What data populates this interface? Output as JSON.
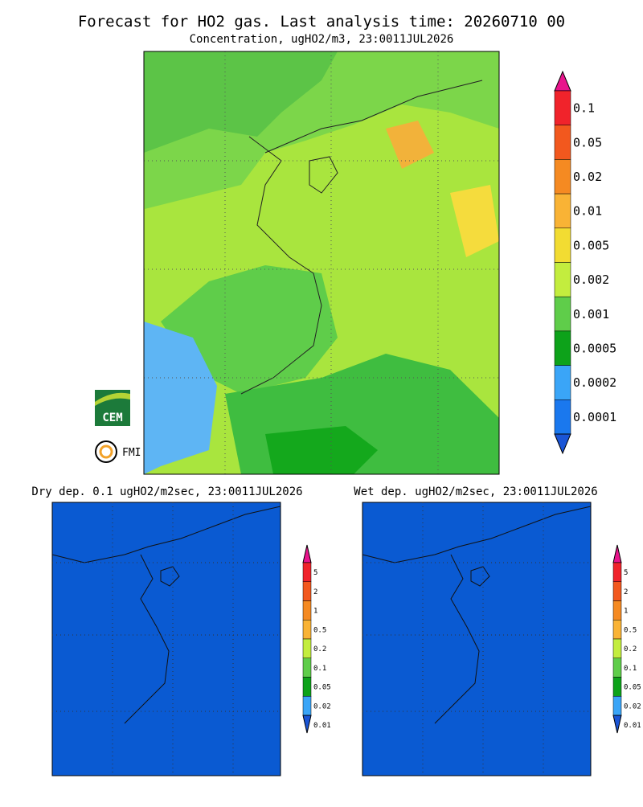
{
  "header": {
    "title": "Forecast for HO2 gas. Last analysis time: 20260710 00",
    "subtitle": "Concentration, ugHO2/m3, 23:0011JUL2026"
  },
  "main_colorbar": {
    "labels": [
      "0.1",
      "0.05",
      "0.02",
      "0.01",
      "0.005",
      "0.002",
      "0.001",
      "0.0005",
      "0.0002",
      "0.0001"
    ],
    "colors": [
      "#e8148c",
      "#f0232b",
      "#f2581e",
      "#f58a22",
      "#f9b335",
      "#f2dc32",
      "#c3ed3e",
      "#5fcd4a",
      "#0da21a",
      "#3aa5f7",
      "#1a78ee",
      "#1a55d6"
    ]
  },
  "logos": {
    "cem": "CEM",
    "fmi": "FMI"
  },
  "panels": [
    {
      "title": "Dry dep. 0.1 ugHO2/m2sec, 23:0011JUL2026"
    },
    {
      "title": "Wet dep. ugHO2/m2sec, 23:0011JUL2026"
    }
  ],
  "small_colorbar": {
    "labels": [
      "5",
      "2",
      "1",
      "0.5",
      "0.2",
      "0.1",
      "0.05",
      "0.02",
      "0.01"
    ],
    "colors": [
      "#e8148c",
      "#f0232b",
      "#f2581e",
      "#f58a22",
      "#f9b335",
      "#c3ed3e",
      "#5fcd4a",
      "#0da21a",
      "#3aa5f7",
      "#1a55d6"
    ]
  }
}
